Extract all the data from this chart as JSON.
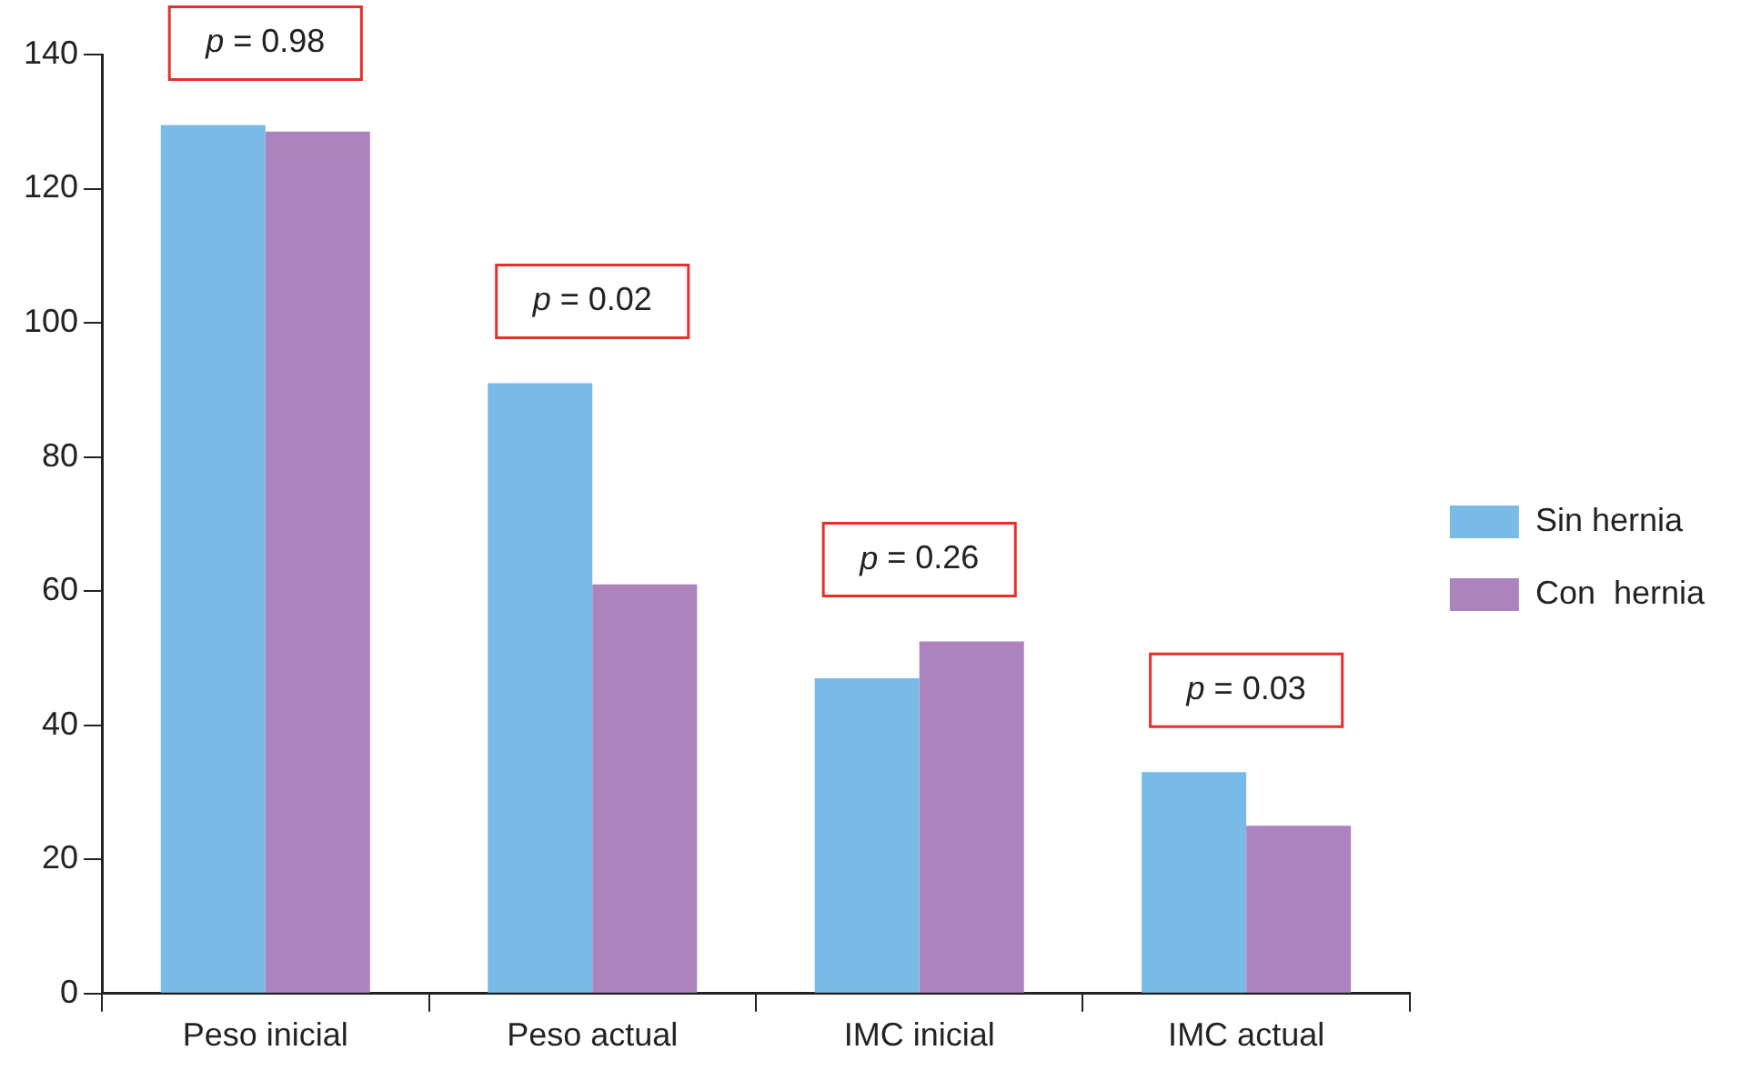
{
  "chart_data": {
    "type": "bar",
    "categories": [
      "Peso inicial",
      "Peso actual",
      "IMC inicial",
      "IMC actual"
    ],
    "series": [
      {
        "name": "Sin hernia",
        "color": "#79bbe6",
        "values": [
          129.5,
          91,
          47,
          33
        ]
      },
      {
        "name": "Con  hernia",
        "color": "#ad83bd",
        "values": [
          128.5,
          61,
          52.5,
          25
        ]
      }
    ],
    "ylim": [
      0,
      140
    ],
    "yticks": [
      0,
      20,
      40,
      60,
      80,
      100,
      120,
      140
    ],
    "grid": false,
    "legend": "right",
    "annotations": [
      "p = 0.98",
      "p = 0.02",
      "p = 0.26",
      "p = 0.03"
    ]
  }
}
